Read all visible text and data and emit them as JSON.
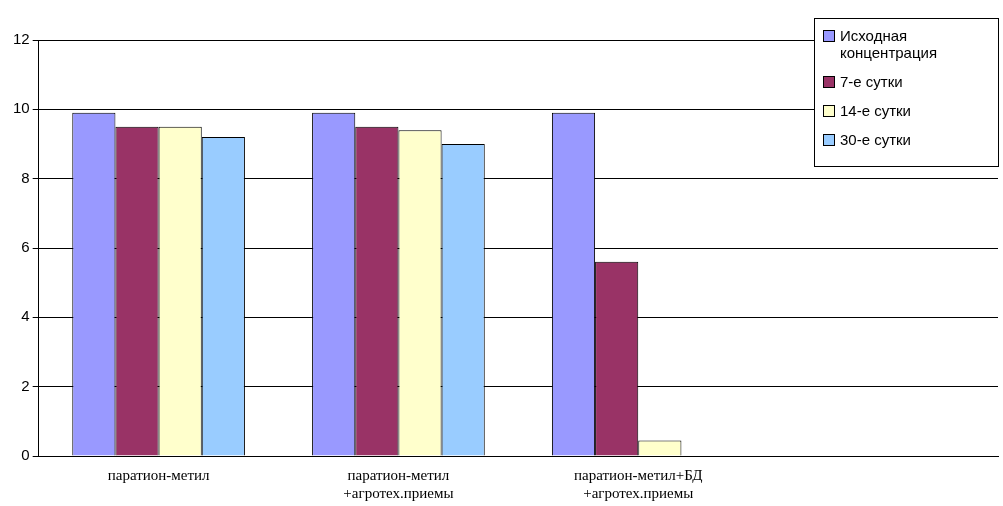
{
  "chart_data": {
    "type": "bar",
    "categories": [
      "паратион-метил",
      "паратион-метил +агротех.приемы",
      "паратион-метил+БД +агротех.приемы",
      null
    ],
    "series": [
      {
        "name": "Исходная концентрация",
        "color": "#9999ff",
        "values": [
          9.9,
          9.9,
          9.9,
          null
        ]
      },
      {
        "name": "7-е сутки",
        "color": "#993366",
        "values": [
          9.5,
          9.5,
          5.6,
          null
        ]
      },
      {
        "name": "14-е сутки",
        "color": "#ffffcc",
        "values": [
          9.5,
          9.4,
          0.45,
          null
        ]
      },
      {
        "name": "30-е сутки",
        "color": "#99ccff",
        "values": [
          9.2,
          9.0,
          0,
          null
        ]
      }
    ],
    "ylim": [
      0,
      12
    ],
    "yticks": [
      0,
      2,
      4,
      6,
      8,
      10,
      12
    ],
    "grid": "y",
    "legend": "top right"
  }
}
